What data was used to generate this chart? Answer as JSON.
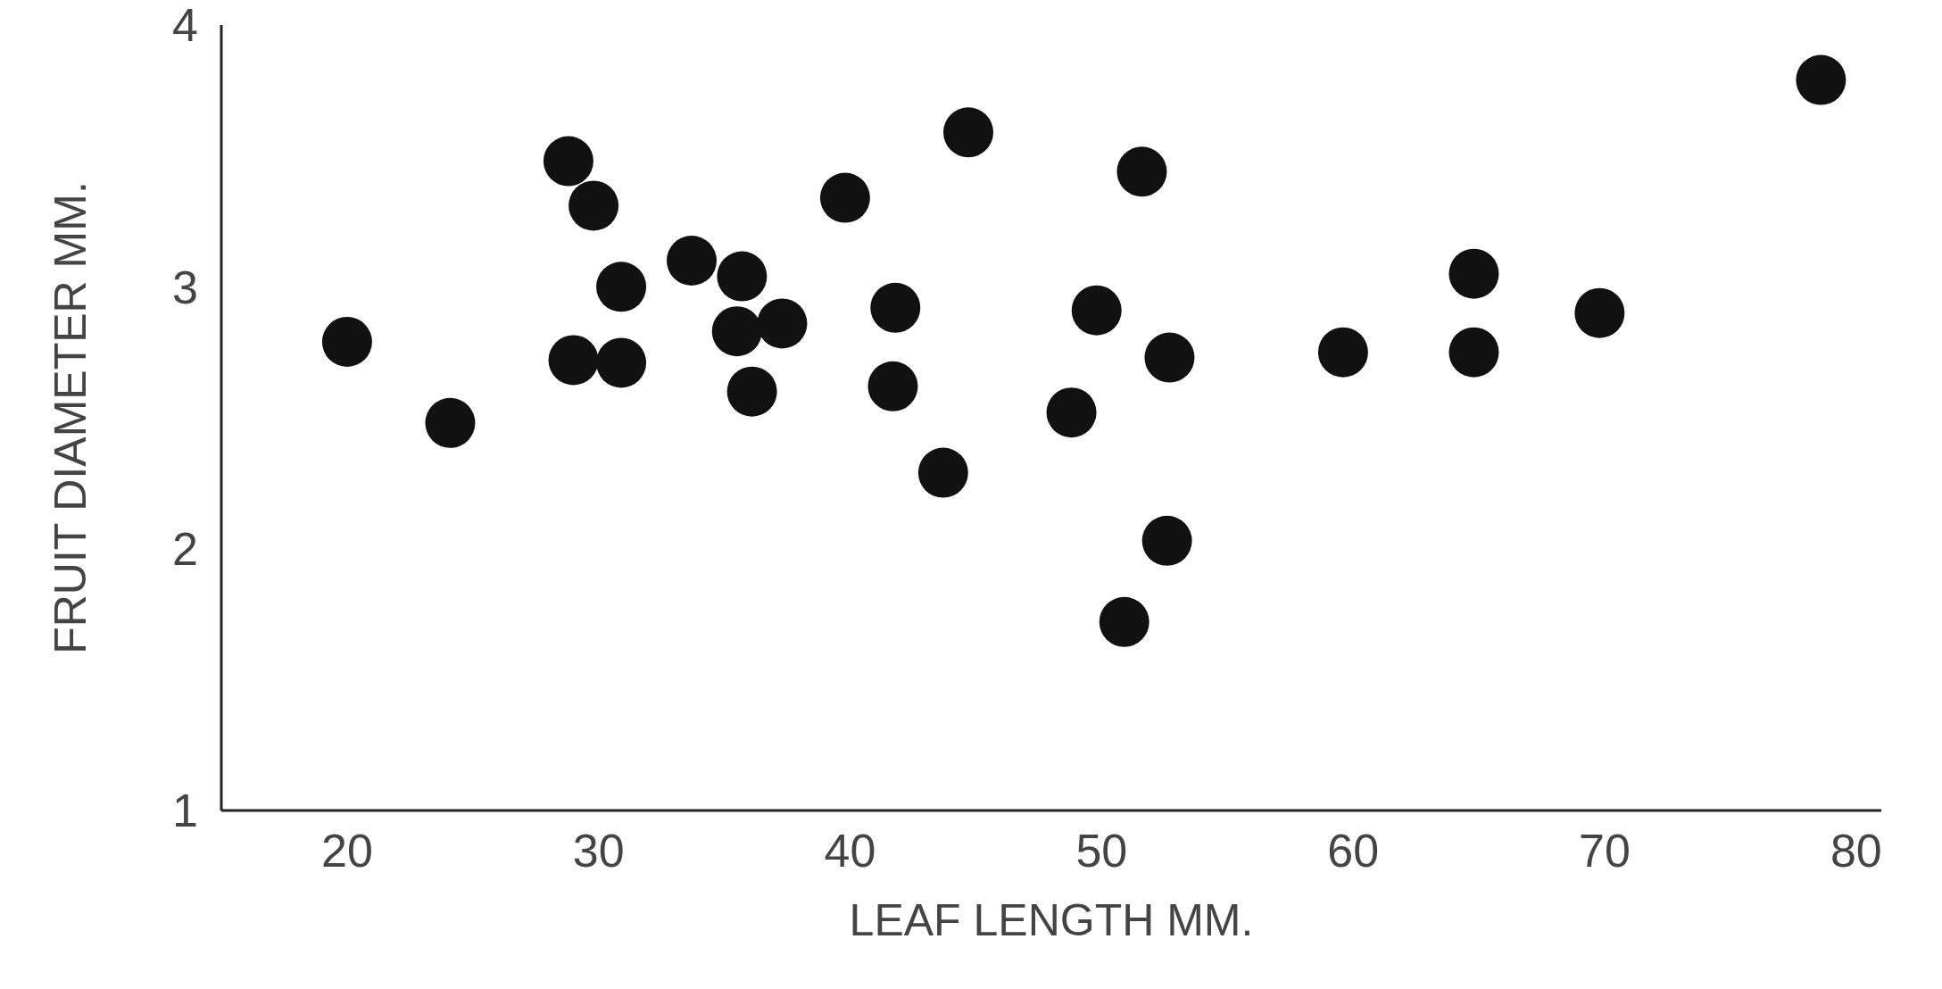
{
  "chart_data": {
    "type": "scatter",
    "xlabel": "LEAF   LENGTH   MM.",
    "ylabel": "FRUIT   DIAMETER   MM.",
    "xlim": [
      15,
      81
    ],
    "xticks": [
      20,
      30,
      40,
      50,
      60,
      70,
      80
    ],
    "ylim": [
      1,
      4
    ],
    "yticks": [
      1,
      2,
      3,
      4
    ],
    "grid": false,
    "legend": false,
    "marker": "circle",
    "series": [
      {
        "color": "#111111",
        "x": [
          20,
          24.1,
          28.8,
          29.8,
          29,
          30.9,
          30.9,
          33.7,
          35.7,
          35.5,
          36.1,
          37.3,
          39.8,
          41.8,
          41.7,
          43.7,
          44.7,
          48.8,
          49.8,
          50.9,
          51.6,
          52.6,
          52.7,
          59.6,
          64.8,
          64.8,
          69.8,
          78.6
        ],
        "values": [
          2.79,
          2.48,
          3.48,
          3.31,
          2.72,
          3.0,
          2.71,
          3.1,
          3.04,
          2.83,
          2.6,
          2.86,
          3.34,
          2.92,
          2.62,
          2.29,
          3.59,
          2.52,
          2.91,
          1.72,
          3.44,
          2.03,
          2.73,
          2.75,
          3.05,
          2.75,
          2.9,
          3.79
        ]
      }
    ]
  }
}
